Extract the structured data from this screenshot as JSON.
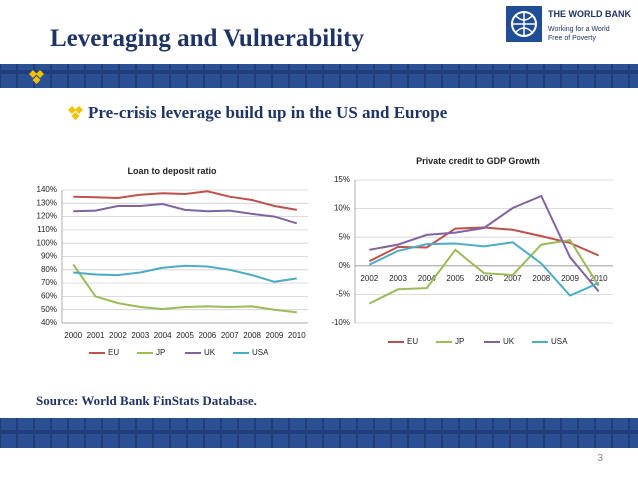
{
  "header": {
    "title": "Leveraging and Vulnerability",
    "logo_name": "THE WORLD BANK",
    "logo_tagline": [
      "Working for a World",
      "Free of Poverty"
    ]
  },
  "bullet": "Pre-crisis leverage build up in the US and Europe",
  "source": "Source: World Bank FinStats Database.",
  "page_number": "3",
  "chart_data": [
    {
      "type": "line",
      "title": "Loan to deposit ratio",
      "categories": [
        "2000",
        "2001",
        "2002",
        "2003",
        "2004",
        "2005",
        "2006",
        "2007",
        "2008",
        "2009",
        "2010"
      ],
      "ylim": [
        40,
        140
      ],
      "yticks": [
        {
          "value": 40,
          "label": "40%"
        },
        {
          "value": 50,
          "label": "50%"
        },
        {
          "value": 60,
          "label": "60%"
        },
        {
          "value": 70,
          "label": "70%"
        },
        {
          "value": 80,
          "label": "80%"
        },
        {
          "value": 90,
          "label": "90%"
        },
        {
          "value": 100,
          "label": "100%"
        },
        {
          "value": 110,
          "label": "110%"
        },
        {
          "value": 120,
          "label": "120%"
        },
        {
          "value": 130,
          "label": "130%"
        },
        {
          "value": 140,
          "label": "140%"
        }
      ],
      "grid": true,
      "series": [
        {
          "name": "EU",
          "color": "#c0504d",
          "values": [
            135,
            134.5,
            134,
            136.5,
            137.5,
            137,
            139,
            135,
            132.5,
            128,
            125
          ]
        },
        {
          "name": "JP",
          "color": "#9bbb59",
          "values": [
            84,
            60,
            55,
            52,
            50.5,
            52,
            52.5,
            52,
            52.5,
            50,
            48
          ]
        },
        {
          "name": "UK",
          "color": "#8064a2",
          "values": [
            124,
            124.5,
            128,
            128,
            129.5,
            125,
            124,
            124.5,
            122,
            120,
            115
          ]
        },
        {
          "name": "USA",
          "color": "#4bacc6",
          "values": [
            78,
            76.5,
            76,
            78,
            81.5,
            83,
            82.5,
            80,
            76,
            71,
            73.5
          ]
        }
      ]
    },
    {
      "type": "line",
      "title": "Private credit to GDP Growth",
      "categories": [
        "2002",
        "2003",
        "2004",
        "2005",
        "2006",
        "2007",
        "2008",
        "2009",
        "2010"
      ],
      "ylim": [
        -10,
        15
      ],
      "yticks": [
        {
          "value": -10,
          "label": "-10%"
        },
        {
          "value": -5,
          "label": "-5%"
        },
        {
          "value": 0,
          "label": "0%"
        },
        {
          "value": 5,
          "label": "5%"
        },
        {
          "value": 10,
          "label": "10%"
        },
        {
          "value": 15,
          "label": "15%"
        }
      ],
      "grid": true,
      "series": [
        {
          "name": "EU",
          "color": "#c0504d",
          "values": [
            0.8,
            3.3,
            3.2,
            6.5,
            6.7,
            6.3,
            5.2,
            4,
            1.8
          ]
        },
        {
          "name": "JP",
          "color": "#9bbb59",
          "values": [
            -6.6,
            -4.1,
            -3.9,
            2.8,
            -1.3,
            -1.6,
            3.7,
            4.5,
            -3.5
          ]
        },
        {
          "name": "UK",
          "color": "#8064a2",
          "values": [
            2.8,
            3.7,
            5.4,
            5.8,
            6.6,
            10.1,
            12.2,
            1.5,
            -4.5
          ]
        },
        {
          "name": "USA",
          "color": "#4bacc6",
          "values": [
            0.2,
            2.6,
            3.8,
            3.9,
            3.4,
            4.1,
            0.4,
            -5.2,
            -3
          ]
        }
      ]
    }
  ]
}
